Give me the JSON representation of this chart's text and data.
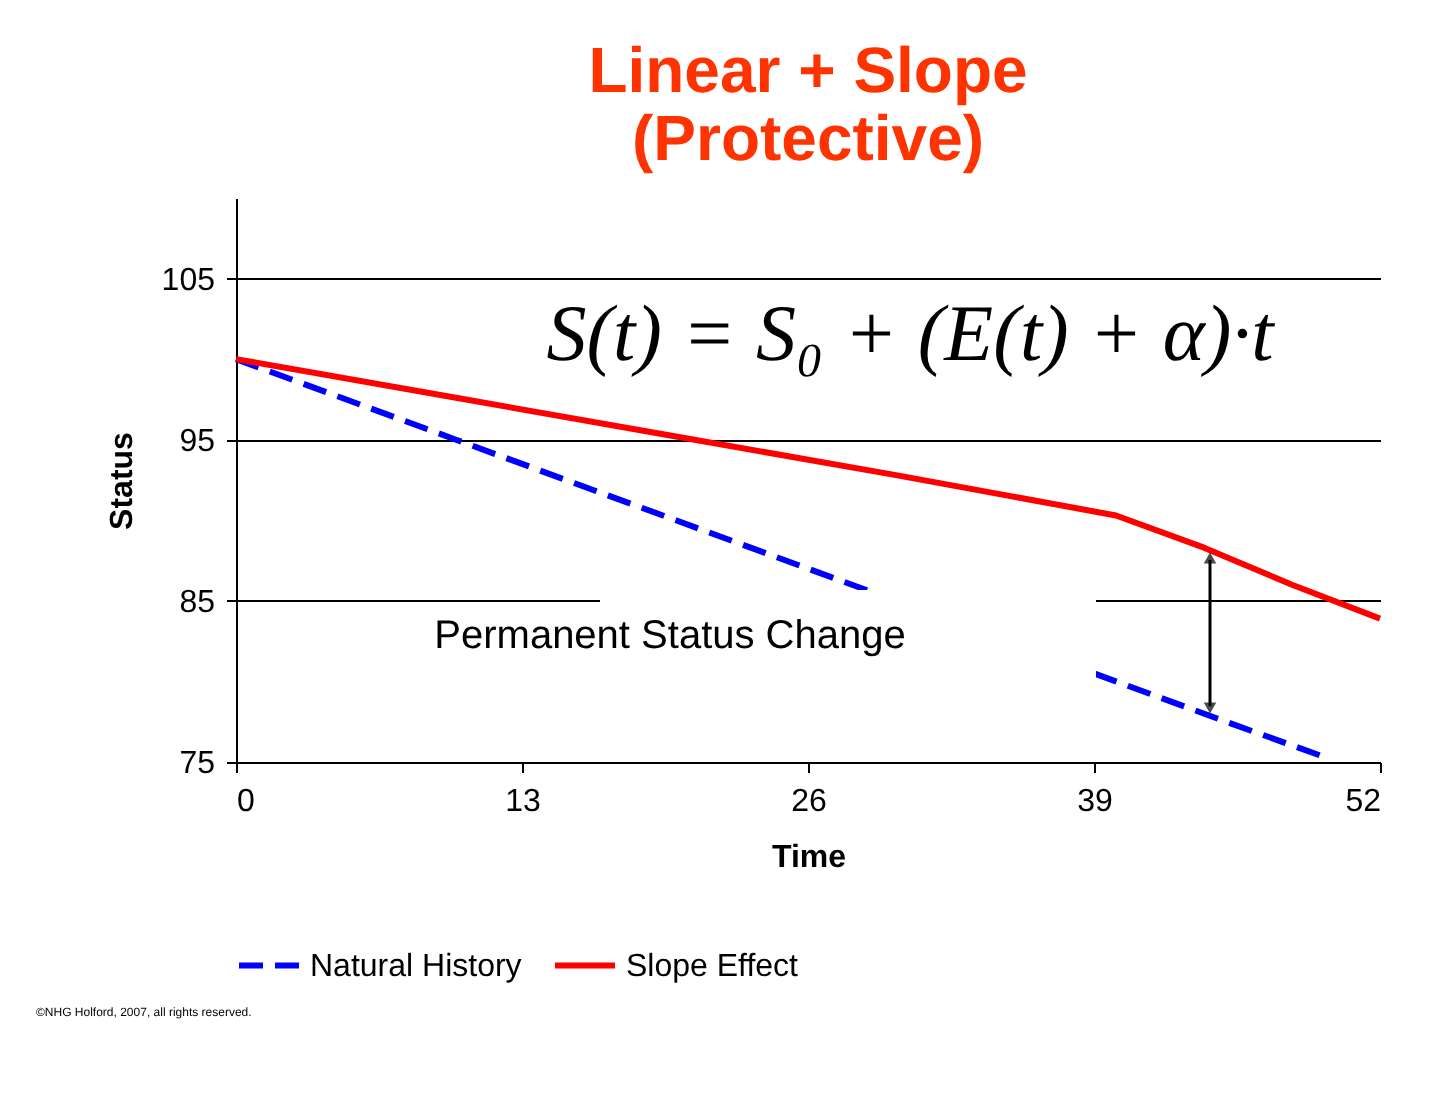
{
  "chart_data": {
    "type": "line",
    "title": [
      "Linear + Slope",
      "(Protective)"
    ],
    "xlabel": "Time",
    "ylabel": "Status",
    "xlim": [
      0,
      52
    ],
    "xticks": [
      0,
      13,
      26,
      39,
      52
    ],
    "ylim": [
      75,
      110
    ],
    "yticks": [
      75,
      85,
      95,
      105
    ],
    "grid": "y",
    "legend": "bottom",
    "marker": "none",
    "series": [
      {
        "name": "Natural History",
        "color": "#0000ff",
        "line_style": "dashed",
        "x": [
          0,
          10,
          20,
          29,
          30,
          39,
          45,
          49.5
        ],
        "values": [
          100,
          95,
          90,
          85.5,
          null,
          80.5,
          77.5,
          75.3
        ]
      },
      {
        "name": "Slope Effect",
        "color": "#ff0000",
        "line_style": "solid",
        "x": [
          0,
          10,
          20,
          30,
          40,
          44,
          48,
          52
        ],
        "values": [
          100,
          97.6,
          95.2,
          92.8,
          90.3,
          88.3,
          86,
          83.9
        ]
      }
    ],
    "annotations": [
      "Permanent Status Change",
      "S(t) = S₀ + (E(t) + α)·t",
      "©NHG Holford, 2007, all rights reserved."
    ]
  }
}
